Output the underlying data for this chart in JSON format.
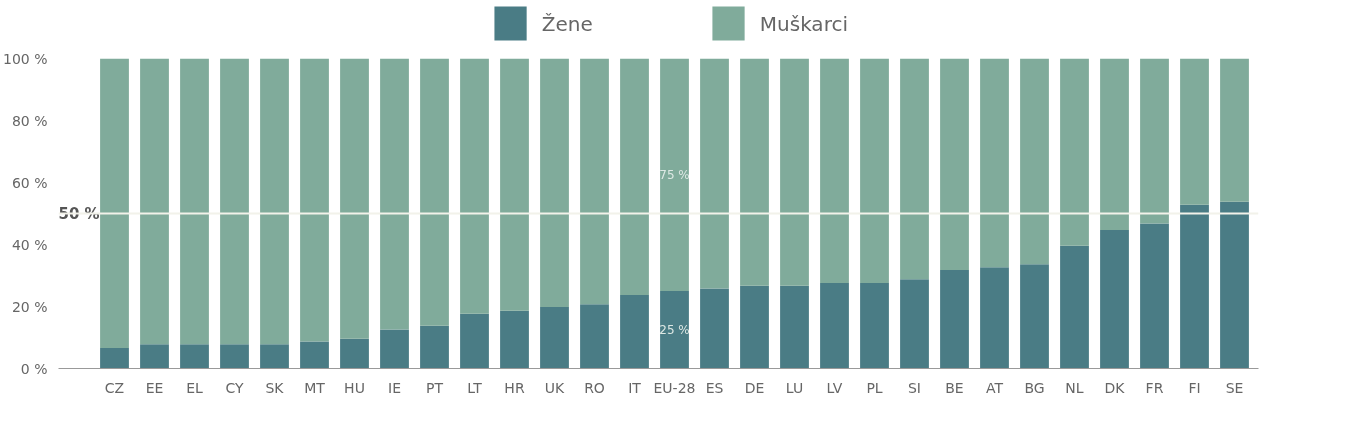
{
  "chart_data": {
    "type": "bar",
    "stacked": true,
    "categories": [
      "CZ",
      "EE",
      "EL",
      "CY",
      "SK",
      "MT",
      "HU",
      "IE",
      "PT",
      "LT",
      "HR",
      "UK",
      "RO",
      "IT",
      "EU-28",
      "ES",
      "DE",
      "LU",
      "LV",
      "PL",
      "SI",
      "BE",
      "AT",
      "BG",
      "NL",
      "DK",
      "FR",
      "FI",
      "SE"
    ],
    "series": [
      {
        "name": "Žene",
        "color": "#4a7c85",
        "values": [
          6.6,
          7.8,
          7.8,
          7.8,
          7.8,
          8.7,
          9.6,
          12.6,
          13.8,
          17.7,
          18.6,
          19.8,
          20.7,
          23.7,
          25,
          25.8,
          26.7,
          26.7,
          27.6,
          27.6,
          28.8,
          31.8,
          32.7,
          33.6,
          39.6,
          44.7,
          46.8,
          52.8,
          53.8
        ],
        "value_labels": [
          null,
          null,
          null,
          null,
          null,
          null,
          null,
          null,
          null,
          null,
          null,
          null,
          null,
          null,
          "25 %",
          null,
          null,
          null,
          null,
          null,
          null,
          null,
          null,
          null,
          null,
          null,
          null,
          null,
          null
        ]
      },
      {
        "name": "Muškarci",
        "color": "#80ab9b",
        "values": [
          93.4,
          92.2,
          92.2,
          92.2,
          92.2,
          91.3,
          90.4,
          87.4,
          86.2,
          82.3,
          81.4,
          80.2,
          79.3,
          76.3,
          75,
          74.2,
          73.3,
          73.3,
          72.4,
          72.4,
          71.2,
          68.2,
          67.3,
          66.4,
          60.4,
          55.3,
          53.2,
          47.2,
          46.2
        ],
        "value_labels": [
          null,
          null,
          null,
          null,
          null,
          null,
          null,
          null,
          null,
          null,
          null,
          null,
          null,
          null,
          "75 %",
          null,
          null,
          null,
          null,
          null,
          null,
          null,
          null,
          null,
          null,
          null,
          null,
          null,
          null
        ]
      }
    ],
    "ylim": [
      0,
      100
    ],
    "yticks": [
      {
        "value": 0,
        "label": "0 %"
      },
      {
        "value": 20,
        "label": "20 %"
      },
      {
        "value": 40,
        "label": "40 %"
      },
      {
        "value": 60,
        "label": "60 %"
      },
      {
        "value": 80,
        "label": "80 %"
      },
      {
        "value": 100,
        "label": "100 %"
      }
    ],
    "ref_lines": [
      {
        "axis": "y",
        "value": 50,
        "label": "50 %",
        "color": "#f2f2ea"
      }
    ],
    "grid": false,
    "legend": "top"
  }
}
